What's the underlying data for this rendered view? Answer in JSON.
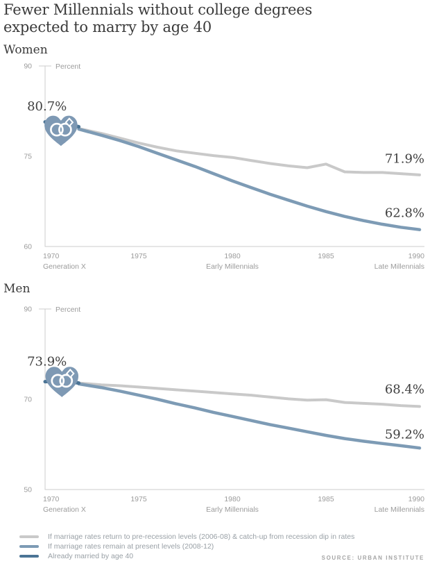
{
  "page": {
    "title_line1": "Fewer Millennials without college degrees",
    "title_line2": "expected to marry by age 40",
    "source": "SOURCE: URBAN INSTITUTE"
  },
  "colors": {
    "scenario_prerecession": "#c9c9c9",
    "scenario_present": "#7d9bb5",
    "already_married": "#4b7495",
    "heart": "#7e99b4",
    "axis": "#cccccc",
    "tick_text": "#9b9b9b",
    "annotation_text": "#3f3f3f"
  },
  "legend": {
    "items": [
      {
        "label": "If marriage rates return to pre-recession levels (2006-08) & catch-up from recession dip in rates",
        "color_key": "scenario_prerecession"
      },
      {
        "label": "If marriage rates remain at present levels (2008-12)",
        "color_key": "scenario_present"
      },
      {
        "label": "Already married by age 40",
        "color_key": "already_married"
      }
    ]
  },
  "chart_data": [
    {
      "type": "line",
      "section_label": "Women",
      "y_axis": {
        "unit_label": "Percent",
        "min": 60,
        "max": 90,
        "ticks": [
          {
            "value": 90,
            "label": "90"
          },
          {
            "value": 75,
            "label": "75"
          },
          {
            "value": 60,
            "label": "60"
          }
        ]
      },
      "x_axis": {
        "min": 1970,
        "max": 1990,
        "ticks": [
          {
            "value": 1970,
            "label": "1970",
            "align": "start"
          },
          {
            "value": 1975,
            "label": "1975",
            "align": "middle"
          },
          {
            "value": 1980,
            "label": "1980",
            "align": "middle"
          },
          {
            "value": 1985,
            "label": "1985",
            "align": "middle"
          },
          {
            "value": 1990,
            "label": "1990",
            "align": "end"
          }
        ],
        "sub_labels": [
          {
            "value": 1970,
            "label": "Generation X",
            "align": "start"
          },
          {
            "value": 1980,
            "label": "Early Millennials",
            "align": "middle"
          },
          {
            "value": 1990,
            "label": "Late Millennials",
            "align": "end"
          }
        ]
      },
      "series": [
        {
          "name": "If marriage rates return to pre-recession levels (2006-08) & catch-up from recession dip in rates",
          "color_key": "scenario_prerecession",
          "width": 4,
          "points": [
            [
              1971.8,
              79.6
            ],
            [
              1973,
              78.8
            ],
            [
              1974,
              78.0
            ],
            [
              1975,
              77.2
            ],
            [
              1976,
              76.5
            ],
            [
              1977,
              75.9
            ],
            [
              1978,
              75.5
            ],
            [
              1979,
              75.1
            ],
            [
              1980,
              74.8
            ],
            [
              1981,
              74.3
            ],
            [
              1982,
              73.8
            ],
            [
              1983,
              73.4
            ],
            [
              1984,
              73.1
            ],
            [
              1985,
              73.7
            ],
            [
              1986,
              72.4
            ],
            [
              1987,
              72.3
            ],
            [
              1988,
              72.3
            ],
            [
              1989,
              72.1
            ],
            [
              1990,
              71.9
            ]
          ]
        },
        {
          "name": "If marriage rates remain at present levels (2008-12)",
          "color_key": "scenario_present",
          "width": 4.5,
          "points": [
            [
              1971.8,
              79.5
            ],
            [
              1973,
              78.5
            ],
            [
              1974,
              77.6
            ],
            [
              1975,
              76.6
            ],
            [
              1976,
              75.5
            ],
            [
              1977,
              74.4
            ],
            [
              1978,
              73.3
            ],
            [
              1979,
              72.1
            ],
            [
              1980,
              70.9
            ],
            [
              1981,
              69.8
            ],
            [
              1982,
              68.7
            ],
            [
              1983,
              67.7
            ],
            [
              1984,
              66.7
            ],
            [
              1985,
              65.8
            ],
            [
              1986,
              65.0
            ],
            [
              1987,
              64.3
            ],
            [
              1988,
              63.7
            ],
            [
              1989,
              63.2
            ],
            [
              1990,
              62.8
            ]
          ]
        },
        {
          "name": "Already married by age 40",
          "color_key": "already_married",
          "width": 5,
          "points": [
            [
              1970,
              80.7
            ],
            [
              1971,
              80.4
            ],
            [
              1971.8,
              79.9
            ]
          ]
        }
      ],
      "annotations": [
        {
          "text": "80.7%",
          "x": 1970.1,
          "y": 82.6,
          "align": "middle"
        },
        {
          "text": "71.9%",
          "x": 1990,
          "y": 73.9,
          "align": "end"
        },
        {
          "text": "62.8%",
          "x": 1990,
          "y": 64.9,
          "align": "end"
        }
      ],
      "marker": {
        "icon": "heart-rings",
        "x": 1970.85,
        "y": 78.9
      }
    },
    {
      "type": "line",
      "section_label": "Men",
      "y_axis": {
        "unit_label": "Percent",
        "min": 50,
        "max": 90,
        "ticks": [
          {
            "value": 90,
            "label": "90"
          },
          {
            "value": 70,
            "label": "70"
          },
          {
            "value": 50,
            "label": "50"
          }
        ]
      },
      "x_axis": {
        "min": 1970,
        "max": 1990,
        "ticks": [
          {
            "value": 1970,
            "label": "1970",
            "align": "start"
          },
          {
            "value": 1975,
            "label": "1975",
            "align": "middle"
          },
          {
            "value": 1980,
            "label": "1980",
            "align": "middle"
          },
          {
            "value": 1985,
            "label": "1985",
            "align": "middle"
          },
          {
            "value": 1990,
            "label": "1990",
            "align": "end"
          }
        ],
        "sub_labels": [
          {
            "value": 1970,
            "label": "Generation X",
            "align": "start"
          },
          {
            "value": 1980,
            "label": "Early Millennials",
            "align": "middle"
          },
          {
            "value": 1990,
            "label": "Late Millennials",
            "align": "end"
          }
        ]
      },
      "series": [
        {
          "name": "If marriage rates return to pre-recession levels (2006-08) & catch-up from recession dip in rates",
          "color_key": "scenario_prerecession",
          "width": 4,
          "points": [
            [
              1971.8,
              73.6
            ],
            [
              1973,
              73.2
            ],
            [
              1974,
              73.0
            ],
            [
              1975,
              72.7
            ],
            [
              1976,
              72.4
            ],
            [
              1977,
              72.1
            ],
            [
              1978,
              71.8
            ],
            [
              1979,
              71.5
            ],
            [
              1980,
              71.2
            ],
            [
              1981,
              70.9
            ],
            [
              1982,
              70.5
            ],
            [
              1983,
              70.1
            ],
            [
              1984,
              69.8
            ],
            [
              1985,
              69.9
            ],
            [
              1986,
              69.3
            ],
            [
              1987,
              69.1
            ],
            [
              1988,
              68.9
            ],
            [
              1989,
              68.6
            ],
            [
              1990,
              68.4
            ]
          ]
        },
        {
          "name": "If marriage rates remain at present levels (2008-12)",
          "color_key": "scenario_present",
          "width": 4.5,
          "points": [
            [
              1971.8,
              73.4
            ],
            [
              1973,
              72.6
            ],
            [
              1974,
              71.8
            ],
            [
              1975,
              70.9
            ],
            [
              1976,
              70.0
            ],
            [
              1977,
              69.0
            ],
            [
              1978,
              68.1
            ],
            [
              1979,
              67.1
            ],
            [
              1980,
              66.2
            ],
            [
              1981,
              65.3
            ],
            [
              1982,
              64.4
            ],
            [
              1983,
              63.6
            ],
            [
              1984,
              62.8
            ],
            [
              1985,
              62.0
            ],
            [
              1986,
              61.3
            ],
            [
              1987,
              60.7
            ],
            [
              1988,
              60.2
            ],
            [
              1989,
              59.7
            ],
            [
              1990,
              59.2
            ]
          ]
        },
        {
          "name": "Already married by age 40",
          "color_key": "already_married",
          "width": 5,
          "points": [
            [
              1970,
              73.9
            ],
            [
              1971,
              74.1
            ],
            [
              1971.8,
              73.6
            ]
          ]
        }
      ],
      "annotations": [
        {
          "text": "73.9%",
          "x": 1970.1,
          "y": 77.5,
          "align": "middle"
        },
        {
          "text": "68.4%",
          "x": 1990,
          "y": 71.3,
          "align": "end"
        },
        {
          "text": "59.2%",
          "x": 1990,
          "y": 61.3,
          "align": "end"
        }
      ],
      "marker": {
        "icon": "heart-rings",
        "x": 1970.9,
        "y": 73.4
      }
    }
  ]
}
